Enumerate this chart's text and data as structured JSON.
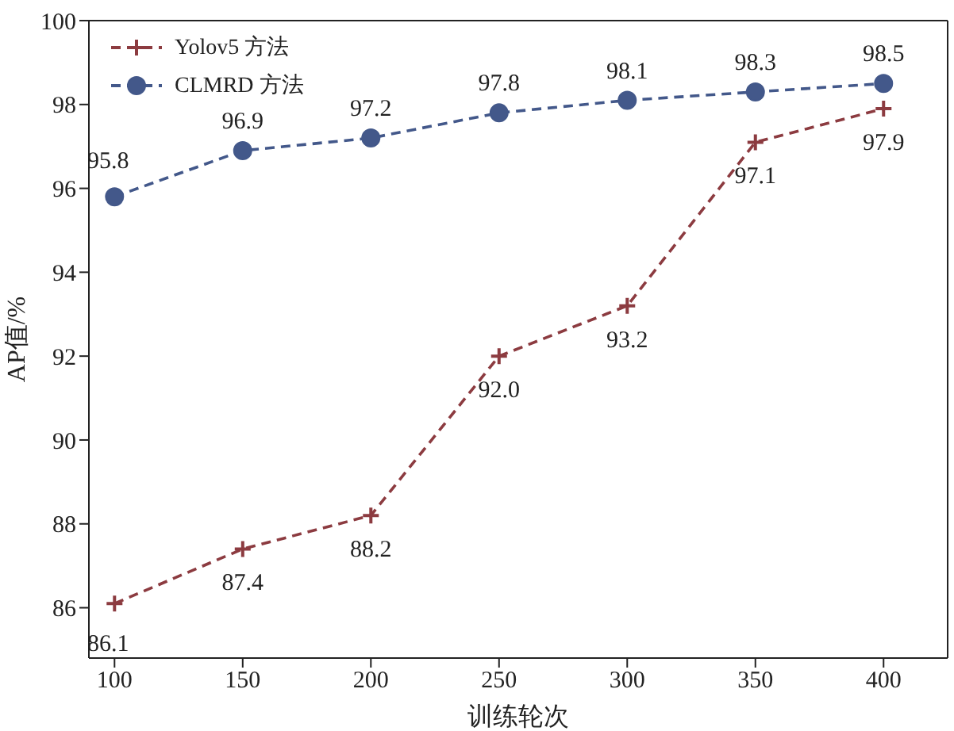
{
  "chart_data": {
    "type": "line",
    "xlabel": "训练轮次",
    "ylabel": "AP值/%",
    "x": [
      100,
      150,
      200,
      250,
      300,
      350,
      400
    ],
    "series": [
      {
        "name": "Yolov5 方法",
        "color": "#8c3b40",
        "marker": "cross",
        "values": [
          86.1,
          87.4,
          88.2,
          92.0,
          93.2,
          97.1,
          97.9
        ],
        "value_labels": [
          "86.1",
          "87.4",
          "88.2",
          "92.0",
          "93.2",
          "97.1",
          "97.9"
        ]
      },
      {
        "name": "CLMRD 方法",
        "color": "#43588a",
        "marker": "circle",
        "values": [
          95.8,
          96.9,
          97.2,
          97.8,
          98.1,
          98.3,
          98.5
        ],
        "value_labels": [
          "95.8",
          "96.9",
          "97.2",
          "97.8",
          "98.1",
          "98.3",
          "98.5"
        ]
      }
    ],
    "xlim": [
      90,
      425
    ],
    "ylim": [
      84.8,
      100
    ],
    "xticks": [
      100,
      150,
      200,
      250,
      300,
      350,
      400
    ],
    "yticks": [
      86,
      88,
      90,
      92,
      94,
      96,
      98,
      100
    ],
    "line_style": "dashed",
    "grid": false,
    "legend": "top left"
  }
}
